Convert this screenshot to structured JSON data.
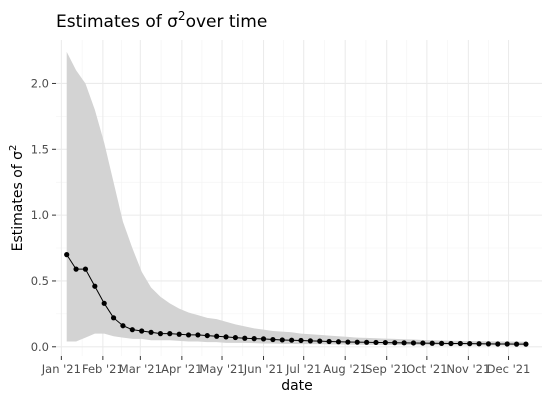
{
  "chart_data": {
    "type": "line",
    "title": "Estimates of σ²over time",
    "title_text": "Estimates of ",
    "title_symbol": "σ",
    "title_sup": "2",
    "title_suffix": "over time",
    "xlabel": "date",
    "ylabel_text": "Estimates of ",
    "ylabel_symbol": "σ",
    "ylabel_sup": "2",
    "ylim": [
      -0.07,
      2.33
    ],
    "xlim": [
      "2020-12-28",
      "2021-12-26"
    ],
    "grid": true,
    "yticks": [
      0.0,
      0.5,
      1.0,
      1.5,
      2.0
    ],
    "ytick_labels": [
      "0.0",
      "0.5",
      "1.0",
      "1.5",
      "2.0"
    ],
    "xticks": [
      "2021-01-01",
      "2021-02-01",
      "2021-03-01",
      "2021-04-01",
      "2021-05-01",
      "2021-06-01",
      "2021-07-01",
      "2021-08-01",
      "2021-09-01",
      "2021-10-01",
      "2021-11-01",
      "2021-12-01"
    ],
    "xtick_labels": [
      "Jan '21",
      "Feb '21",
      "Mar '21",
      "Apr '21",
      "May '21",
      "Jun '21",
      "Jul '21",
      "Aug '21",
      "Sep '21",
      "Oct '21",
      "Nov '21",
      "Dec '21"
    ],
    "colors": {
      "line": "#000000",
      "point": "#000000",
      "ribbon": "#d3d3d3",
      "grid_major": "#ebebeb",
      "grid_minor": "#f2f2f2",
      "background": "#ffffff"
    },
    "series": [
      {
        "x": [
          "2021-01-05",
          "2021-01-12",
          "2021-01-19",
          "2021-01-26",
          "2021-02-02",
          "2021-02-09",
          "2021-02-16",
          "2021-02-23",
          "2021-03-02",
          "2021-03-09",
          "2021-03-16",
          "2021-03-23",
          "2021-03-30",
          "2021-04-06",
          "2021-04-13",
          "2021-04-20",
          "2021-04-27",
          "2021-05-04",
          "2021-05-11",
          "2021-05-18",
          "2021-05-25",
          "2021-06-01",
          "2021-06-08",
          "2021-06-15",
          "2021-06-22",
          "2021-06-29",
          "2021-07-06",
          "2021-07-13",
          "2021-07-20",
          "2021-07-27",
          "2021-08-03",
          "2021-08-10",
          "2021-08-17",
          "2021-08-24",
          "2021-08-31",
          "2021-09-07",
          "2021-09-14",
          "2021-09-21",
          "2021-09-28",
          "2021-10-05",
          "2021-10-12",
          "2021-10-19",
          "2021-10-26",
          "2021-11-02",
          "2021-11-09",
          "2021-11-16",
          "2021-11-23",
          "2021-11-30",
          "2021-12-07",
          "2021-12-14"
        ],
        "y": [
          0.7,
          0.59,
          0.59,
          0.46,
          0.33,
          0.22,
          0.16,
          0.13,
          0.12,
          0.11,
          0.1,
          0.1,
          0.095,
          0.09,
          0.09,
          0.085,
          0.08,
          0.075,
          0.07,
          0.065,
          0.062,
          0.06,
          0.055,
          0.052,
          0.05,
          0.048,
          0.045,
          0.043,
          0.04,
          0.038,
          0.036,
          0.035,
          0.034,
          0.033,
          0.032,
          0.031,
          0.03,
          0.029,
          0.028,
          0.027,
          0.026,
          0.025,
          0.025,
          0.024,
          0.023,
          0.022,
          0.021,
          0.021,
          0.02,
          0.02
        ],
        "lower": [
          0.04,
          0.04,
          0.07,
          0.1,
          0.1,
          0.08,
          0.07,
          0.06,
          0.06,
          0.05,
          0.05,
          0.05,
          0.045,
          0.04,
          0.04,
          0.035,
          0.035,
          0.03,
          0.03,
          0.03,
          0.028,
          0.025,
          0.025,
          0.022,
          0.022,
          0.02,
          0.02,
          0.02,
          0.018,
          0.018,
          0.016,
          0.016,
          0.015,
          0.015,
          0.014,
          0.014,
          0.013,
          0.013,
          0.012,
          0.012,
          0.012,
          0.011,
          0.011,
          0.011,
          0.01,
          0.01,
          0.01,
          0.01,
          0.01,
          0.01
        ],
        "upper": [
          2.24,
          2.1,
          2.0,
          1.8,
          1.55,
          1.25,
          0.95,
          0.75,
          0.57,
          0.45,
          0.38,
          0.33,
          0.29,
          0.26,
          0.24,
          0.22,
          0.21,
          0.19,
          0.17,
          0.155,
          0.14,
          0.13,
          0.12,
          0.115,
          0.11,
          0.1,
          0.095,
          0.09,
          0.085,
          0.08,
          0.075,
          0.07,
          0.068,
          0.065,
          0.062,
          0.06,
          0.057,
          0.055,
          0.052,
          0.05,
          0.048,
          0.046,
          0.045,
          0.044,
          0.043,
          0.042,
          0.041,
          0.04,
          0.039,
          0.038
        ]
      }
    ]
  }
}
